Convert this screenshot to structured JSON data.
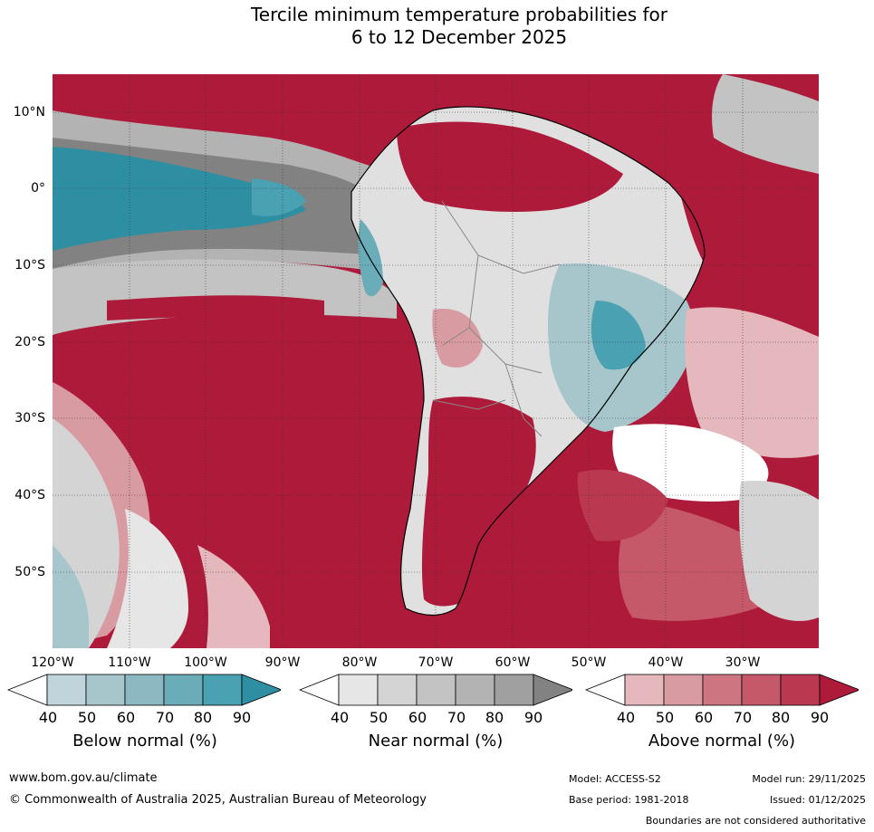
{
  "title_line1": "Tercile minimum temperature probabilities for",
  "title_line2": "6 to 12 December 2025",
  "lat_labels": [
    "10°N",
    "0°",
    "10°S",
    "20°S",
    "30°S",
    "40°S",
    "50°S"
  ],
  "lon_labels": [
    "120°W",
    "110°W",
    "100°W",
    "90°W",
    "80°W",
    "70°W",
    "60°W",
    "50°W",
    "40°W",
    "30°W"
  ],
  "colorbars": [
    {
      "title": "Below normal (%)",
      "ticks": [
        "40",
        "50",
        "60",
        "70",
        "80",
        "90"
      ],
      "colors": [
        "#ffffff",
        "#bfd5db",
        "#a6c6cc",
        "#8cb9c1",
        "#6aacb8",
        "#4aa1b2",
        "#2e8ea2"
      ]
    },
    {
      "title": "Near normal (%)",
      "ticks": [
        "40",
        "50",
        "60",
        "70",
        "80",
        "90"
      ],
      "colors": [
        "#ffffff",
        "#e6e6e6",
        "#d4d4d4",
        "#c3c3c3",
        "#b3b3b3",
        "#a0a0a0",
        "#828282"
      ]
    },
    {
      "title": "Above normal (%)",
      "ticks": [
        "40",
        "50",
        "60",
        "70",
        "80",
        "90"
      ],
      "colors": [
        "#ffffff",
        "#e4b8bd",
        "#d99ba2",
        "#cd7682",
        "#c5596a",
        "#ba3850",
        "#ae1a3a"
      ]
    }
  ],
  "footer": {
    "website": "www.bom.gov.au/climate",
    "copyright": "© Commonwealth of Australia 2025, Australian Bureau of Meteorology",
    "model": "Model: ACCESS-S2",
    "model_run": "Model run: 29/11/2025",
    "base_period": "Base period: 1981-2018",
    "issued": "Issued: 01/12/2025",
    "boundaries_note": "Boundaries are not considered authoritative"
  },
  "colors": {
    "above_strong": "#ae1a3a",
    "above_mid": "#c5596a",
    "above_light": "#e4b8bd",
    "near_dark": "#828282",
    "near_mid": "#b3b3b3",
    "near_light": "#e0e0e0",
    "below_strong": "#2e8ea2",
    "below_light": "#a6c6cc"
  }
}
